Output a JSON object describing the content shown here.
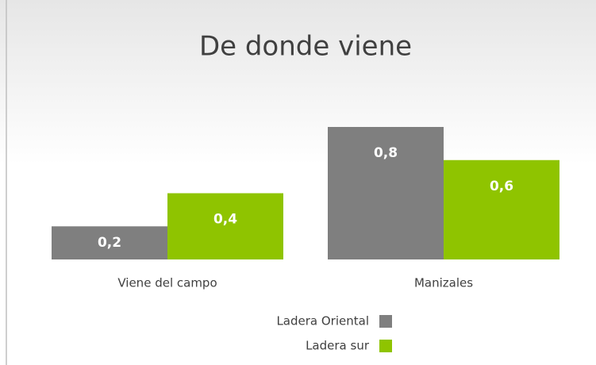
{
  "chart_data": {
    "type": "bar",
    "title": "De donde viene",
    "categories": [
      "Viene del campo",
      "Manizales"
    ],
    "series": [
      {
        "name": "Ladera Oriental",
        "color": "#7f7f7f",
        "values": [
          0.2,
          0.8
        ],
        "value_labels": [
          "0,2",
          "0,8"
        ]
      },
      {
        "name": "Ladera sur",
        "color": "#8fc400",
        "values": [
          0.4,
          0.6
        ],
        "value_labels": [
          "0,4",
          "0,6"
        ]
      }
    ]
  }
}
